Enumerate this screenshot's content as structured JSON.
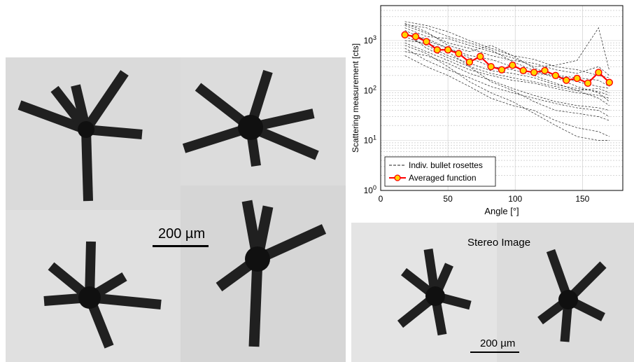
{
  "scale_label_left": "200 µm",
  "scale_label_right": "200 µm",
  "stereo_title": "Stereo Image",
  "colors": {
    "photo_bg": "#d8d8d8",
    "crystal": "#1f1f1f",
    "indiv_line": "#222222",
    "avg_line": "#ff0000",
    "avg_marker_fill": "#ffd400"
  },
  "chart_data": {
    "type": "line",
    "xlabel": "Angle  [°]",
    "ylabel": "Scattering measurement [cts]",
    "xlim": [
      0,
      180
    ],
    "ylim": [
      1,
      5000
    ],
    "yscale": "log",
    "grid": true,
    "legend_position": "bottom-left",
    "x_ticks": [
      0,
      50,
      100,
      150
    ],
    "y_ticks": [
      "10^0",
      "10^1",
      "10^2",
      "10^3"
    ],
    "series": [
      {
        "name": "Averaged function",
        "x": [
          18,
          26,
          34,
          42,
          50,
          58,
          66,
          74,
          82,
          90,
          98,
          106,
          114,
          122,
          130,
          138,
          146,
          154,
          162,
          170
        ],
        "y": [
          1300,
          1200,
          950,
          650,
          650,
          550,
          370,
          480,
          300,
          260,
          320,
          250,
          230,
          250,
          200,
          160,
          175,
          140,
          230,
          145
        ]
      },
      {
        "name": "Indiv. bullet rosettes",
        "x": [
          18,
          34,
          50,
          66,
          82,
          98,
          114,
          130,
          146,
          162,
          170
        ],
        "y_family": [
          [
            2000,
            1400,
            900,
            700,
            500,
            400,
            350,
            260,
            220,
            300,
            200
          ],
          [
            1600,
            1000,
            700,
            500,
            420,
            300,
            220,
            200,
            180,
            160,
            120
          ],
          [
            1200,
            800,
            500,
            350,
            250,
            220,
            180,
            130,
            110,
            95,
            80
          ],
          [
            900,
            600,
            400,
            260,
            200,
            160,
            140,
            110,
            90,
            80,
            70
          ],
          [
            2400,
            2000,
            1500,
            1000,
            700,
            500,
            420,
            300,
            260,
            200,
            180
          ],
          [
            700,
            400,
            260,
            180,
            120,
            90,
            70,
            55,
            45,
            40,
            30
          ],
          [
            1800,
            1200,
            1100,
            800,
            600,
            450,
            300,
            320,
            400,
            1800,
            250
          ],
          [
            500,
            300,
            200,
            120,
            70,
            50,
            40,
            25,
            18,
            15,
            12
          ],
          [
            1000,
            900,
            600,
            300,
            150,
            100,
            60,
            40,
            35,
            30,
            25
          ],
          [
            2200,
            1500,
            800,
            600,
            800,
            500,
            280,
            200,
            150,
            120,
            110
          ],
          [
            600,
            500,
            350,
            220,
            160,
            110,
            80,
            60,
            50,
            45,
            40
          ],
          [
            1500,
            700,
            450,
            300,
            220,
            180,
            150,
            120,
            100,
            110,
            90
          ],
          [
            2100,
            1800,
            1200,
            900,
            650,
            380,
            250,
            180,
            120,
            90,
            60
          ],
          [
            800,
            550,
            300,
            150,
            90,
            60,
            35,
            20,
            12,
            10,
            10
          ],
          [
            1300,
            1100,
            700,
            450,
            300,
            260,
            200,
            140,
            100,
            70,
            50
          ]
        ]
      }
    ],
    "legend": [
      "Indiv. bullet rosettes",
      "Averaged function"
    ]
  }
}
